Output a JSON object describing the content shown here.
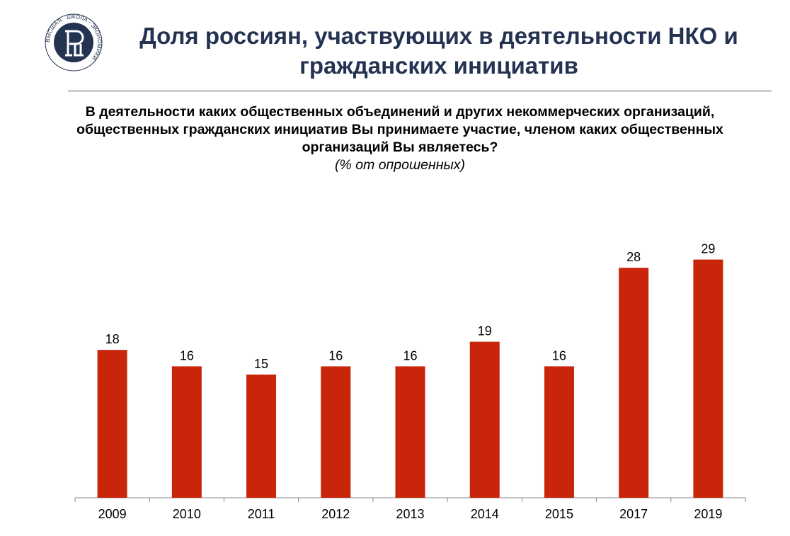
{
  "header": {
    "title": "Доля россиян, участвующих в деятельности НКО и гражданских инициатив",
    "logo_text": "ВЫСШАЯ ШКОЛА ЭКОНОМИКИ",
    "logo_color": "#253352"
  },
  "question": "В деятельности каких общественных объединений и других некоммерческих организаций, общественных гражданских инициатив Вы принимаете участие, членом каких общественных организаций Вы являетесь?",
  "unit": "(% от опрошенных)",
  "chart_data": {
    "type": "bar",
    "categories": [
      "2009",
      "2010",
      "2011",
      "2012",
      "2013",
      "2014",
      "2015",
      "2017",
      "2019"
    ],
    "values": [
      18,
      16,
      15,
      16,
      16,
      19,
      16,
      28,
      29
    ],
    "data_labels": true,
    "bar_color": "#c8250a",
    "ylim": [
      0,
      30
    ],
    "grid": false,
    "legend": "none",
    "xlabel": "",
    "ylabel": ""
  }
}
